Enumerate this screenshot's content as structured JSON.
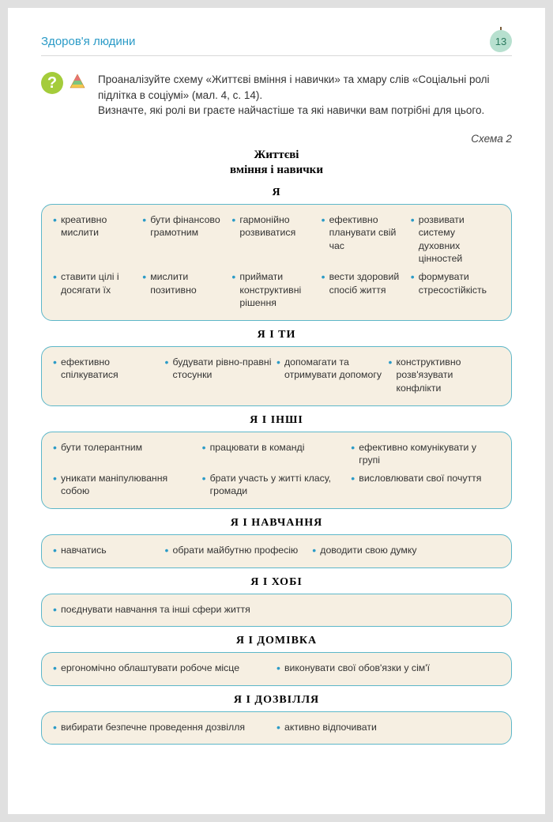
{
  "header": {
    "title": "Здоров'я людини",
    "page_number": "13"
  },
  "intro": {
    "text": "Проаналізуйте схему «Життєві вміння і навички» та хмару слів «Соціальні ролі підлітка в соціумі» (мал. 4, с. 14).\nВизначте, які ролі ви граєте найчастіше та які навички вам потрібні для цього."
  },
  "scheme": {
    "label": "Схема 2",
    "title_line1": "Життєві",
    "title_line2": "вміння і навички"
  },
  "sections": [
    {
      "title": "Я",
      "cols": "cols-5",
      "items": [
        "креативно мислити",
        "бути фінансово грамотним",
        "гармонійно розвиватися",
        "ефективно планувати свій час",
        "розвивати систему духовних цінностей",
        "ставити цілі і досягати їх",
        "мислити позитивно",
        "приймати конструктивні рішення",
        "вести здоровий спосіб життя",
        "формувати стресостійкість"
      ]
    },
    {
      "title": "Я І ТИ",
      "cols": "cols-4",
      "items": [
        "ефективно спілкуватися",
        "будувати рівно-правні стосунки",
        "допомагати та отримувати допомогу",
        "конструктивно розв'язувати конфлікти"
      ]
    },
    {
      "title": "Я І ІНШІ",
      "cols": "cols-3",
      "items": [
        "бути толерантним",
        "працювати в команді",
        "ефективно комунікувати у групі",
        "уникати маніпулювання собою",
        "брати участь у житті класу, громади",
        "висловлювати свої почуття"
      ]
    },
    {
      "title": "Я І НАВЧАННЯ",
      "cols": "row-3-special",
      "items": [
        "навчатись",
        "обрати майбутню професію",
        "доводити свою думку"
      ]
    },
    {
      "title": "Я І ХОБІ",
      "cols": "cols-1",
      "items": [
        "поєднувати навчання та інші сфери життя"
      ]
    },
    {
      "title": "Я І ДОМІВКА",
      "cols": "cols-2",
      "items": [
        "ергономічно облаштувати робоче місце",
        "виконувати свої обов'язки у сім'ї"
      ]
    },
    {
      "title": "Я І ДОЗВІЛЛЯ",
      "cols": "cols-2",
      "items": [
        "вибирати безпечне проведення дозвілля",
        "активно відпочивати"
      ]
    }
  ],
  "colors": {
    "header_title": "#2b9bc7",
    "box_border": "#5db7c9",
    "box_bg": "#f6efe2",
    "bullet": "#2b9bc7",
    "badge_bg": "#b7e0cf",
    "q_icon_bg": "#a4cc3b"
  }
}
